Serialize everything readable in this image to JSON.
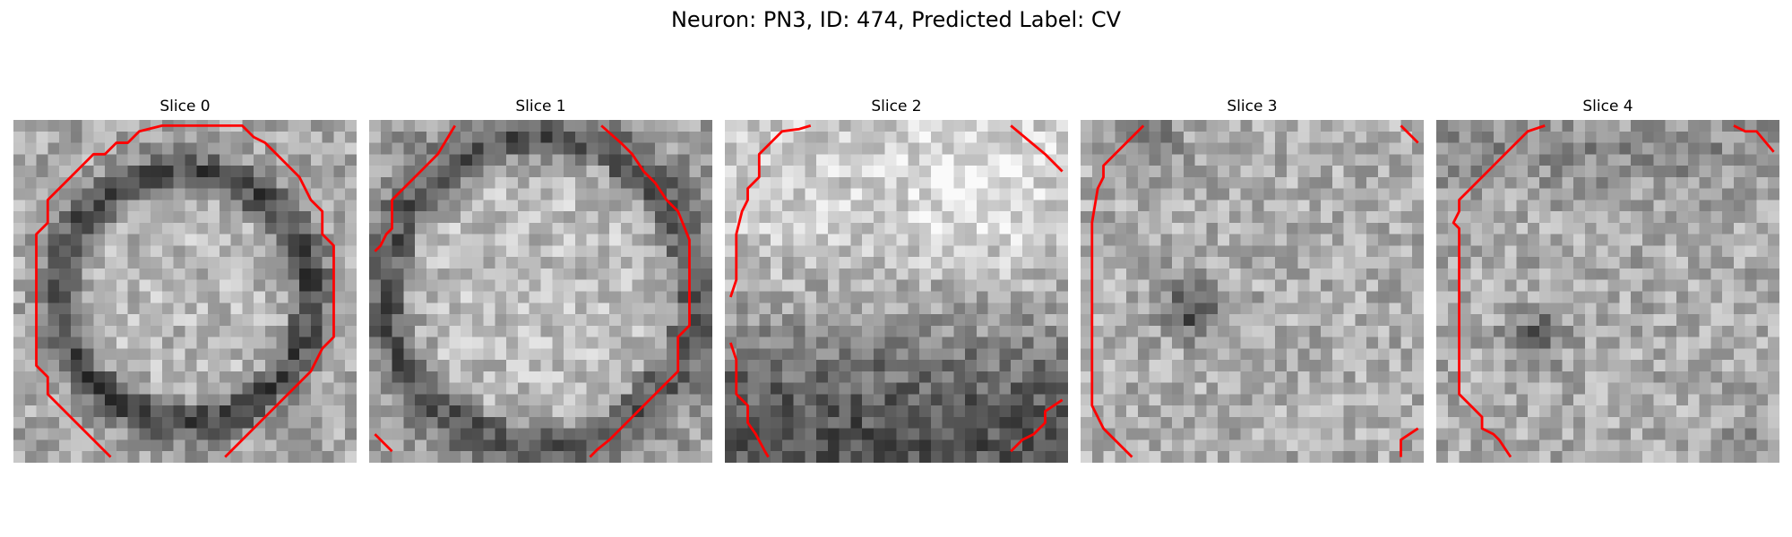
{
  "figure": {
    "title": "Neuron: PN3, ID: 474, Predicted Label: CV"
  },
  "slices": [
    {
      "label": "Slice 0"
    },
    {
      "label": "Slice 1"
    },
    {
      "label": "Slice 2"
    },
    {
      "label": "Slice 3"
    },
    {
      "label": "Slice 4"
    }
  ],
  "colors": {
    "contour": "#ff0000",
    "background": "#ffffff"
  }
}
